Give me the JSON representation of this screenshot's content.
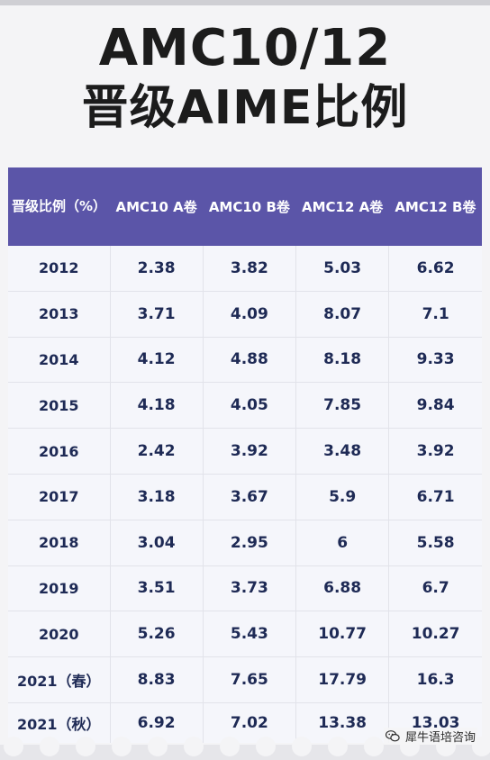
{
  "title": {
    "line1": "AMC10/12",
    "line2": "晋级AIME比例"
  },
  "table": {
    "headers": [
      "晋级比例（%）",
      "AMC10 A卷",
      "AMC10 B卷",
      "AMC12 A卷",
      "AMC12 B卷"
    ],
    "rows": [
      [
        "2012",
        "2.38",
        "3.82",
        "5.03",
        "6.62"
      ],
      [
        "2013",
        "3.71",
        "4.09",
        "8.07",
        "7.1"
      ],
      [
        "2014",
        "4.12",
        "4.88",
        "8.18",
        "9.33"
      ],
      [
        "2015",
        "4.18",
        "4.05",
        "7.85",
        "9.84"
      ],
      [
        "2016",
        "2.42",
        "3.92",
        "3.48",
        "3.92"
      ],
      [
        "2017",
        "3.18",
        "3.67",
        "5.9",
        "6.71"
      ],
      [
        "2018",
        "3.04",
        "2.95",
        "6",
        "5.58"
      ],
      [
        "2019",
        "3.51",
        "3.73",
        "6.88",
        "6.7"
      ],
      [
        "2020",
        "5.26",
        "5.43",
        "10.77",
        "10.27"
      ],
      [
        "2021（春）",
        "8.83",
        "7.65",
        "17.79",
        "16.3"
      ],
      [
        "2021（秋）",
        "6.92",
        "7.02",
        "13.38",
        "13.03"
      ]
    ]
  },
  "watermark": {
    "text": "犀牛语培咨询",
    "icon": "wechat-icon"
  },
  "colors": {
    "header_bg": "#5b55a8",
    "header_text": "#ffffff",
    "cell_text": "#1e2a55",
    "title_text": "#1c1c1c"
  }
}
